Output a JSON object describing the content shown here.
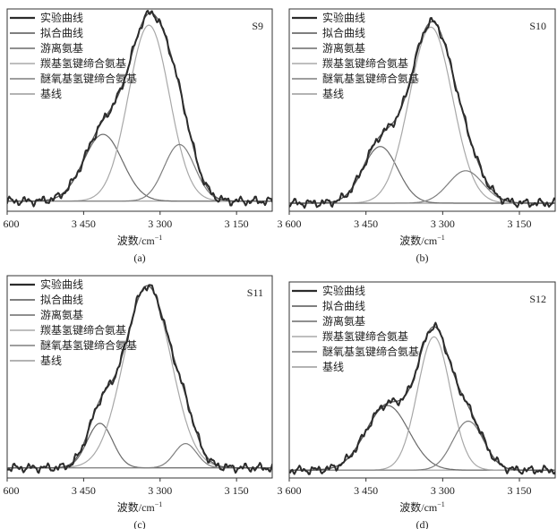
{
  "legend_entries": [
    {
      "label": "实验曲线",
      "color": "#2b2b2b",
      "width": 2.0
    },
    {
      "label": "拟合曲线",
      "color": "#555555",
      "width": 1.2
    },
    {
      "label": "游离氨基",
      "color": "#6a6a6a",
      "width": 1.2
    },
    {
      "label": "羰基氢键缔合氨基",
      "color": "#a8a8a8",
      "width": 1.2
    },
    {
      "label": "醚氧基氢键缔合氨基",
      "color": "#7e7e7e",
      "width": 1.2
    },
    {
      "label": "基线",
      "color": "#9a9a9a",
      "width": 1.2
    }
  ],
  "chart_data": [
    {
      "type": "line",
      "panel_label": "S9",
      "caption": "(a)",
      "xlabel": "波数/cm",
      "xlabel_sup": "−1",
      "x_reversed": true,
      "xlim": [
        3600,
        3080
      ],
      "xticks": [
        {
          "value": 3600,
          "label": "3 600"
        },
        {
          "value": 3450,
          "label": "3 450"
        },
        {
          "value": 3300,
          "label": "3 300"
        },
        {
          "value": 3150,
          "label": "3 150"
        }
      ],
      "ylim": [
        0,
        1.0
      ],
      "legend_position": "top-left",
      "baseline": 0.05,
      "components": [
        {
          "name": "游离氨基",
          "center": 3412,
          "amplitude": 0.33,
          "width": 38
        },
        {
          "name": "羰基氢键缔合氨基",
          "center": 3322,
          "amplitude": 0.87,
          "width": 40
        },
        {
          "name": "醚氧基氢键缔合氨基",
          "center": 3262,
          "amplitude": 0.28,
          "width": 30
        }
      ]
    },
    {
      "type": "line",
      "panel_label": "S10",
      "caption": "(b)",
      "xlabel": "波数/cm",
      "xlabel_sup": "−1",
      "x_reversed": true,
      "xlim": [
        3600,
        3080
      ],
      "xticks": [
        {
          "value": 3600,
          "label": "3 600"
        },
        {
          "value": 3450,
          "label": "3 450"
        },
        {
          "value": 3300,
          "label": "3 300"
        },
        {
          "value": 3150,
          "label": "3 150"
        }
      ],
      "ylim": [
        0,
        1.0
      ],
      "legend_position": "top-left",
      "baseline": 0.04,
      "components": [
        {
          "name": "游离氨基",
          "center": 3422,
          "amplitude": 0.28,
          "width": 34
        },
        {
          "name": "羰基氢键缔合氨基",
          "center": 3323,
          "amplitude": 0.87,
          "width": 42
        },
        {
          "name": "醚氧基氢键缔合氨基",
          "center": 3255,
          "amplitude": 0.16,
          "width": 34
        }
      ]
    },
    {
      "type": "line",
      "panel_label": "S11",
      "caption": "(c)",
      "xlabel": "波数/cm",
      "xlabel_sup": "−1",
      "x_reversed": true,
      "xlim": [
        3600,
        3080
      ],
      "xticks": [
        {
          "value": 3600,
          "label": "3 600"
        },
        {
          "value": 3450,
          "label": "3 450"
        },
        {
          "value": 3300,
          "label": "3 300"
        },
        {
          "value": 3150,
          "label": "3 150"
        }
      ],
      "ylim": [
        0,
        1.0
      ],
      "legend_position": "top-left",
      "baseline": 0.05,
      "components": [
        {
          "name": "游离氨基",
          "center": 3418,
          "amplitude": 0.22,
          "width": 25
        },
        {
          "name": "羰基氢键缔合氨基",
          "center": 3325,
          "amplitude": 0.9,
          "width": 46
        },
        {
          "name": "醚氧基氢键缔合氨基",
          "center": 3250,
          "amplitude": 0.12,
          "width": 22
        }
      ]
    },
    {
      "type": "line",
      "panel_label": "S12",
      "caption": "(d)",
      "xlabel": "波数/cm",
      "xlabel_sup": "−1",
      "x_reversed": true,
      "xlim": [
        3600,
        3080
      ],
      "xticks": [
        {
          "value": 3600,
          "label": "3 600"
        },
        {
          "value": 3450,
          "label": "3 450"
        },
        {
          "value": 3300,
          "label": "3 300"
        },
        {
          "value": 3150,
          "label": "3 150"
        }
      ],
      "ylim": [
        0,
        1.0
      ],
      "legend_position": "top-left",
      "baseline": 0.04,
      "components": [
        {
          "name": "游离氨基",
          "center": 3408,
          "amplitude": 0.33,
          "width": 42
        },
        {
          "name": "羰基氢键缔合氨基",
          "center": 3317,
          "amplitude": 0.68,
          "width": 32
        },
        {
          "name": "醚氧基氢键缔合氨基",
          "center": 3250,
          "amplitude": 0.25,
          "width": 30
        }
      ]
    }
  ]
}
